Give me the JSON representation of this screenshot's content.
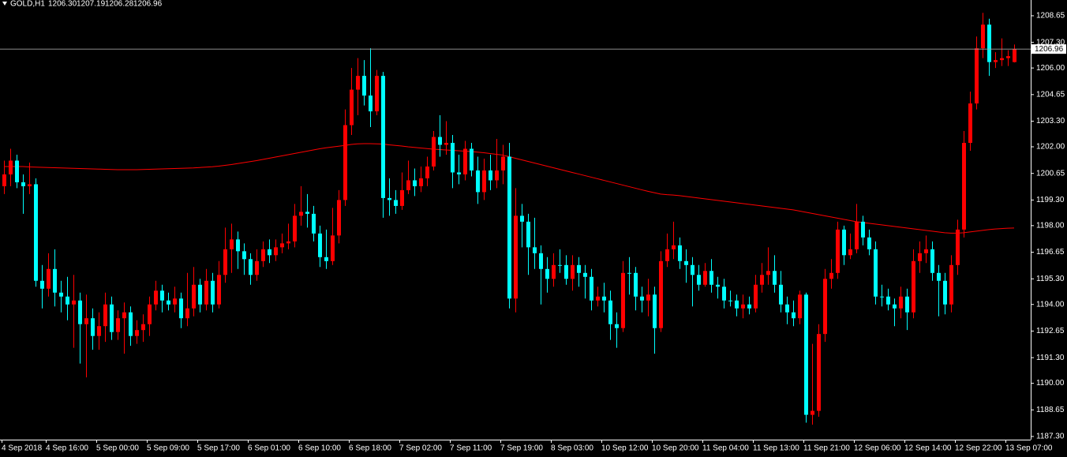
{
  "chart_data": {
    "type": "candlestick",
    "title": "GOLD,H1",
    "header_values": [
      "1206.30",
      "1207.19",
      "1206.28",
      "1206.96"
    ],
    "categories": [
      "4 Sep 2018",
      null,
      null,
      null,
      null,
      null,
      null,
      "4 Sep 16:00",
      null,
      null,
      null,
      null,
      null,
      null,
      null,
      "5 Sep 00:00",
      null,
      null,
      null,
      null,
      null,
      null,
      null,
      "5 Sep 09:00",
      null,
      null,
      null,
      null,
      null,
      null,
      null,
      "5 Sep 17:00",
      null,
      null,
      null,
      null,
      null,
      null,
      null,
      "6 Sep 01:00",
      null,
      null,
      null,
      null,
      null,
      null,
      null,
      "6 Sep 10:00",
      null,
      null,
      null,
      null,
      null,
      null,
      null,
      "6 Sep 18:00",
      null,
      null,
      null,
      null,
      null,
      null,
      null,
      "7 Sep 02:00",
      null,
      null,
      null,
      null,
      null,
      null,
      null,
      "7 Sep 11:00",
      null,
      null,
      null,
      null,
      null,
      null,
      null,
      "7 Sep 19:00",
      null,
      null,
      null,
      null,
      null,
      null,
      null,
      "8 Sep 03:00",
      null,
      null,
      null,
      null,
      null,
      null,
      null,
      "10 Sep 12:00",
      null,
      null,
      null,
      null,
      null,
      null,
      null,
      "10 Sep 20:00",
      null,
      null,
      null,
      null,
      null,
      null,
      null,
      "11 Sep 04:00",
      null,
      null,
      null,
      null,
      null,
      null,
      null,
      "11 Sep 13:00",
      null,
      null,
      null,
      null,
      null,
      null,
      null,
      "11 Sep 21:00",
      null,
      null,
      null,
      null,
      null,
      null,
      null,
      "12 Sep 06:00",
      null,
      null,
      null,
      null,
      null,
      null,
      null,
      "12 Sep 14:00",
      null,
      null,
      null,
      null,
      null,
      null,
      null,
      "12 Sep 22:00",
      null,
      null,
      null,
      null,
      null,
      null,
      null,
      "13 Sep 07:00",
      null
    ],
    "open": [
      1200.0,
      1200.6,
      1201.3,
      1200.2,
      1200.0,
      1200.1,
      1195.2,
      1194.8,
      1195.8,
      1194.6,
      1194.4,
      1194.0,
      1194.2,
      1193.0,
      1193.3,
      1192.4,
      1192.9,
      1194.0,
      1192.6,
      1193.3,
      1193.6,
      1192.4,
      1192.7,
      1193.0,
      1194.0,
      1194.7,
      1194.2,
      1194.0,
      1194.3,
      1193.3,
      1193.8,
      1195.0,
      1194.0,
      1195.2,
      1194.0,
      1195.5,
      1196.8,
      1197.3,
      1196.7,
      1196.3,
      1195.5,
      1196.2,
      1196.8,
      1196.5,
      1196.9,
      1197.1,
      1197.2,
      1198.5,
      1198.7,
      1198.6,
      1197.6,
      1196.4,
      1196.2,
      1197.5,
      1199.3,
      1203.1,
      1204.9,
      1205.6,
      1204.6,
      1203.8,
      1205.6,
      1199.4,
      1199.3,
      1199.0,
      1199.8,
      1200.3,
      1200.0,
      1200.4,
      1201.0,
      1202.5,
      1202.1,
      1202.2,
      1200.7,
      1200.6,
      1201.9,
      1200.8,
      1199.7,
      1200.8,
      1200.3,
      1200.8,
      1201.5,
      1194.3,
      1198.5,
      1198.2,
      1196.9,
      1196.6,
      1195.8,
      1195.3,
      1196.0,
      1196.0,
      1195.3,
      1196.0,
      1195.6,
      1195.4,
      1194.2,
      1194.4,
      1194.2,
      1193.0,
      1192.8,
      1195.6,
      1195.6,
      1194.4,
      1194.2,
      1194.5,
      1192.8,
      1196.2,
      1196.8,
      1197.0,
      1196.2,
      1196.0,
      1195.5,
      1195.0,
      1195.7,
      1195.0,
      1194.9,
      1194.2,
      1194.2,
      1193.8,
      1194.0,
      1193.8,
      1195.0,
      1195.5,
      1195.7,
      1195.0,
      1194.0,
      1193.6,
      1193.3,
      1194.5,
      1188.4,
      1188.6,
      1192.5,
      1195.3,
      1195.6,
      1197.8,
      1196.5,
      1196.8,
      1198.2,
      1197.4,
      1196.8,
      1194.4,
      1194.4,
      1194.0,
      1193.8,
      1194.4,
      1193.6,
      1196.2,
      1196.6,
      1196.8,
      1195.6,
      1195.2,
      1194.0,
      1196.0,
      1197.8,
      1202.2,
      1204.2,
      1207.0,
      1208.2,
      1206.3,
      1206.4,
      1206.5,
      1206.3
    ],
    "high": [
      1201.3,
      1201.9,
      1201.6,
      1200.6,
      1201.2,
      1200.4,
      1196.0,
      1196.6,
      1196.8,
      1195.2,
      1195.4,
      1195.5,
      1194.6,
      1194.5,
      1193.8,
      1193.6,
      1194.6,
      1194.4,
      1193.7,
      1194.1,
      1193.9,
      1193.2,
      1193.5,
      1194.4,
      1195.2,
      1195.0,
      1194.6,
      1194.9,
      1194.6,
      1195.6,
      1195.9,
      1195.3,
      1195.8,
      1195.6,
      1196.2,
      1197.9,
      1198.1,
      1197.7,
      1197.1,
      1196.6,
      1196.8,
      1197.2,
      1197.3,
      1197.3,
      1197.6,
      1198.1,
      1199.1,
      1200.0,
      1199.6,
      1199.0,
      1198.0,
      1197.8,
      1198.9,
      1199.8,
      1203.9,
      1206.0,
      1206.5,
      1206.4,
      1207.0,
      1205.9,
      1205.8,
      1200.4,
      1199.8,
      1200.7,
      1201.3,
      1200.9,
      1201.0,
      1201.5,
      1202.8,
      1203.6,
      1203.3,
      1202.6,
      1201.6,
      1202.3,
      1202.2,
      1201.5,
      1201.4,
      1201.6,
      1202.4,
      1202.1,
      1202.2,
      1199.9,
      1199.1,
      1198.6,
      1198.4,
      1197.0,
      1196.4,
      1196.6,
      1196.8,
      1196.5,
      1196.5,
      1196.4,
      1196.0,
      1195.8,
      1194.9,
      1195.1,
      1194.7,
      1193.6,
      1196.2,
      1196.4,
      1195.9,
      1194.9,
      1195.3,
      1194.9,
      1196.7,
      1197.6,
      1198.2,
      1197.4,
      1196.8,
      1196.4,
      1196.0,
      1196.1,
      1196.3,
      1195.4,
      1195.3,
      1194.7,
      1194.5,
      1194.5,
      1194.4,
      1195.5,
      1196.1,
      1196.9,
      1196.5,
      1195.7,
      1194.4,
      1194.2,
      1194.7,
      1194.6,
      1192.0,
      1193.0,
      1195.8,
      1196.3,
      1198.2,
      1198.0,
      1197.6,
      1199.1,
      1198.5,
      1197.8,
      1197.2,
      1195.0,
      1194.8,
      1194.3,
      1194.9,
      1194.8,
      1196.8,
      1197.2,
      1197.5,
      1197.2,
      1196.0,
      1195.6,
      1196.5,
      1198.3,
      1202.8,
      1204.8,
      1207.6,
      1208.8,
      1208.5,
      1206.8,
      1207.5,
      1206.9,
      1207.19
    ],
    "low": [
      1199.6,
      1200.0,
      1199.9,
      1198.6,
      1199.6,
      1194.9,
      1193.8,
      1194.4,
      1193.9,
      1193.6,
      1193.2,
      1191.8,
      1191.0,
      1190.3,
      1191.7,
      1191.7,
      1192.1,
      1192.2,
      1192.2,
      1191.5,
      1191.9,
      1192.0,
      1192.1,
      1192.4,
      1193.7,
      1193.6,
      1193.7,
      1193.6,
      1192.8,
      1192.9,
      1193.4,
      1193.6,
      1193.7,
      1193.6,
      1193.8,
      1195.1,
      1195.6,
      1195.8,
      1195.5,
      1195.0,
      1195.2,
      1195.9,
      1196.1,
      1196.2,
      1196.6,
      1196.8,
      1196.9,
      1198.0,
      1197.9,
      1197.2,
      1195.9,
      1195.8,
      1196.0,
      1197.1,
      1199.0,
      1202.6,
      1203.6,
      1204.1,
      1203.0,
      1203.6,
      1198.4,
      1198.5,
      1198.6,
      1198.8,
      1199.6,
      1199.5,
      1199.7,
      1200.0,
      1200.8,
      1201.5,
      1201.6,
      1199.9,
      1200.1,
      1200.3,
      1200.5,
      1199.1,
      1199.3,
      1199.8,
      1199.9,
      1200.1,
      1193.8,
      1193.6,
      1196.9,
      1195.5,
      1195.8,
      1194.0,
      1194.6,
      1194.9,
      1195.6,
      1195.0,
      1194.7,
      1194.9,
      1194.3,
      1193.7,
      1193.9,
      1193.6,
      1192.2,
      1191.8,
      1192.6,
      1194.5,
      1193.7,
      1193.6,
      1193.4,
      1191.5,
      1192.6,
      1195.9,
      1196.3,
      1195.8,
      1195.1,
      1193.9,
      1194.7,
      1194.9,
      1194.6,
      1194.3,
      1193.8,
      1193.9,
      1193.4,
      1193.3,
      1193.5,
      1193.6,
      1194.6,
      1195.0,
      1194.6,
      1193.6,
      1193.0,
      1192.9,
      1193.0,
      1188.0,
      1187.9,
      1188.3,
      1192.1,
      1194.8,
      1195.3,
      1196.0,
      1196.3,
      1196.6,
      1197.0,
      1196.5,
      1194.0,
      1193.9,
      1193.7,
      1192.9,
      1193.3,
      1192.7,
      1193.3,
      1195.6,
      1196.1,
      1195.2,
      1193.4,
      1193.5,
      1193.6,
      1195.5,
      1197.4,
      1201.8,
      1203.9,
      1206.5,
      1205.6,
      1206.0,
      1206.1,
      1206.1,
      1206.28
    ],
    "close": [
      1200.6,
      1201.3,
      1200.2,
      1200.0,
      1200.1,
      1195.2,
      1194.8,
      1195.8,
      1194.6,
      1194.4,
      1194.0,
      1194.2,
      1193.0,
      1193.3,
      1192.4,
      1192.9,
      1194.0,
      1192.6,
      1193.3,
      1193.6,
      1192.4,
      1192.7,
      1193.0,
      1194.0,
      1194.7,
      1194.2,
      1194.0,
      1194.3,
      1193.3,
      1193.8,
      1195.0,
      1194.0,
      1195.2,
      1194.0,
      1195.5,
      1196.8,
      1197.3,
      1196.7,
      1196.3,
      1195.5,
      1196.2,
      1196.8,
      1196.5,
      1196.9,
      1197.1,
      1197.2,
      1198.5,
      1198.7,
      1198.6,
      1197.6,
      1196.4,
      1196.2,
      1197.5,
      1199.3,
      1203.1,
      1204.9,
      1205.6,
      1204.6,
      1203.8,
      1205.6,
      1199.4,
      1199.3,
      1199.0,
      1199.8,
      1200.3,
      1200.0,
      1200.4,
      1201.0,
      1202.5,
      1202.1,
      1202.2,
      1200.7,
      1200.6,
      1201.9,
      1200.8,
      1199.7,
      1200.8,
      1200.3,
      1200.8,
      1201.5,
      1194.3,
      1198.5,
      1198.2,
      1196.9,
      1196.6,
      1195.8,
      1195.3,
      1196.0,
      1196.0,
      1195.3,
      1196.0,
      1195.6,
      1195.4,
      1194.2,
      1194.4,
      1194.2,
      1193.0,
      1192.8,
      1195.6,
      1195.6,
      1194.4,
      1194.2,
      1194.5,
      1192.8,
      1196.2,
      1196.8,
      1197.0,
      1196.2,
      1196.0,
      1195.5,
      1195.0,
      1195.7,
      1195.0,
      1194.9,
      1194.2,
      1194.2,
      1193.8,
      1194.0,
      1193.8,
      1195.0,
      1195.5,
      1195.7,
      1195.0,
      1194.0,
      1193.6,
      1193.3,
      1194.5,
      1188.4,
      1188.6,
      1192.5,
      1195.3,
      1195.6,
      1197.8,
      1196.5,
      1196.8,
      1198.2,
      1197.4,
      1196.8,
      1194.4,
      1194.4,
      1194.0,
      1193.8,
      1194.4,
      1193.6,
      1196.2,
      1196.6,
      1196.8,
      1195.6,
      1195.2,
      1194.0,
      1196.0,
      1197.8,
      1202.2,
      1204.2,
      1207.0,
      1208.2,
      1206.3,
      1206.4,
      1206.5,
      1206.6,
      1206.96
    ],
    "overlay": {
      "color": "#ff0000",
      "values": [
        1201.0,
        1201.0,
        1201.0,
        1201.0,
        1200.98,
        1200.97,
        1200.96,
        1200.95,
        1200.94,
        1200.93,
        1200.92,
        1200.91,
        1200.9,
        1200.89,
        1200.88,
        1200.87,
        1200.86,
        1200.85,
        1200.84,
        1200.84,
        1200.84,
        1200.84,
        1200.85,
        1200.86,
        1200.87,
        1200.88,
        1200.89,
        1200.9,
        1200.91,
        1200.92,
        1200.93,
        1200.95,
        1200.97,
        1200.99,
        1201.02,
        1201.06,
        1201.1,
        1201.15,
        1201.2,
        1201.25,
        1201.3,
        1201.36,
        1201.42,
        1201.48,
        1201.54,
        1201.6,
        1201.66,
        1201.72,
        1201.78,
        1201.84,
        1201.9,
        1201.95,
        1201.99,
        1202.03,
        1202.07,
        1202.12,
        1202.15,
        1202.16,
        1202.16,
        1202.15,
        1202.14,
        1202.1,
        1202.07,
        1202.04,
        1202.0,
        1201.97,
        1201.94,
        1201.91,
        1201.88,
        1201.86,
        1201.84,
        1201.82,
        1201.8,
        1201.78,
        1201.76,
        1201.73,
        1201.7,
        1201.66,
        1201.62,
        1201.58,
        1201.5,
        1201.42,
        1201.34,
        1201.26,
        1201.18,
        1201.1,
        1201.02,
        1200.94,
        1200.86,
        1200.78,
        1200.7,
        1200.62,
        1200.54,
        1200.46,
        1200.38,
        1200.3,
        1200.22,
        1200.14,
        1200.06,
        1199.98,
        1199.9,
        1199.82,
        1199.74,
        1199.67,
        1199.6,
        1199.57,
        1199.55,
        1199.52,
        1199.48,
        1199.44,
        1199.4,
        1199.36,
        1199.32,
        1199.28,
        1199.24,
        1199.2,
        1199.16,
        1199.12,
        1199.08,
        1199.04,
        1199.0,
        1198.96,
        1198.92,
        1198.88,
        1198.84,
        1198.8,
        1198.74,
        1198.68,
        1198.62,
        1198.56,
        1198.5,
        1198.44,
        1198.38,
        1198.32,
        1198.26,
        1198.2,
        1198.16,
        1198.12,
        1198.08,
        1198.04,
        1198.0,
        1197.96,
        1197.92,
        1197.88,
        1197.84,
        1197.8,
        1197.76,
        1197.72,
        1197.68,
        1197.64,
        1197.62,
        1197.62,
        1197.64,
        1197.68,
        1197.72,
        1197.76,
        1197.8,
        1197.83,
        1197.85,
        1197.87,
        1197.88
      ]
    },
    "up_color": "#ff0000",
    "down_color": "#00ffff",
    "bid": {
      "value": 1206.96,
      "label": "1206.96"
    },
    "ylim": [
      1187.14,
      1209.45
    ],
    "yticks": [
      1208.65,
      {
        "value": 1207.3,
        "label": "1207.30"
      },
      {
        "value": 1206,
        "label": "1206.00"
      },
      1204.65,
      {
        "value": 1203.3,
        "label": "1203.30"
      },
      {
        "value": 1202,
        "label": "1202.00"
      },
      1200.65,
      {
        "value": 1199.3,
        "label": "1199.30"
      },
      {
        "value": 1198,
        "label": "1198.00"
      },
      1196.65,
      {
        "value": 1195.3,
        "label": "1195.30"
      },
      {
        "value": 1194,
        "label": "1194.00"
      },
      1192.65,
      {
        "value": 1191.3,
        "label": "1191.30"
      },
      {
        "value": 1190,
        "label": "1190.00"
      },
      1188.65,
      {
        "value": 1187.3,
        "label": "1187.30"
      }
    ],
    "grid": false
  }
}
